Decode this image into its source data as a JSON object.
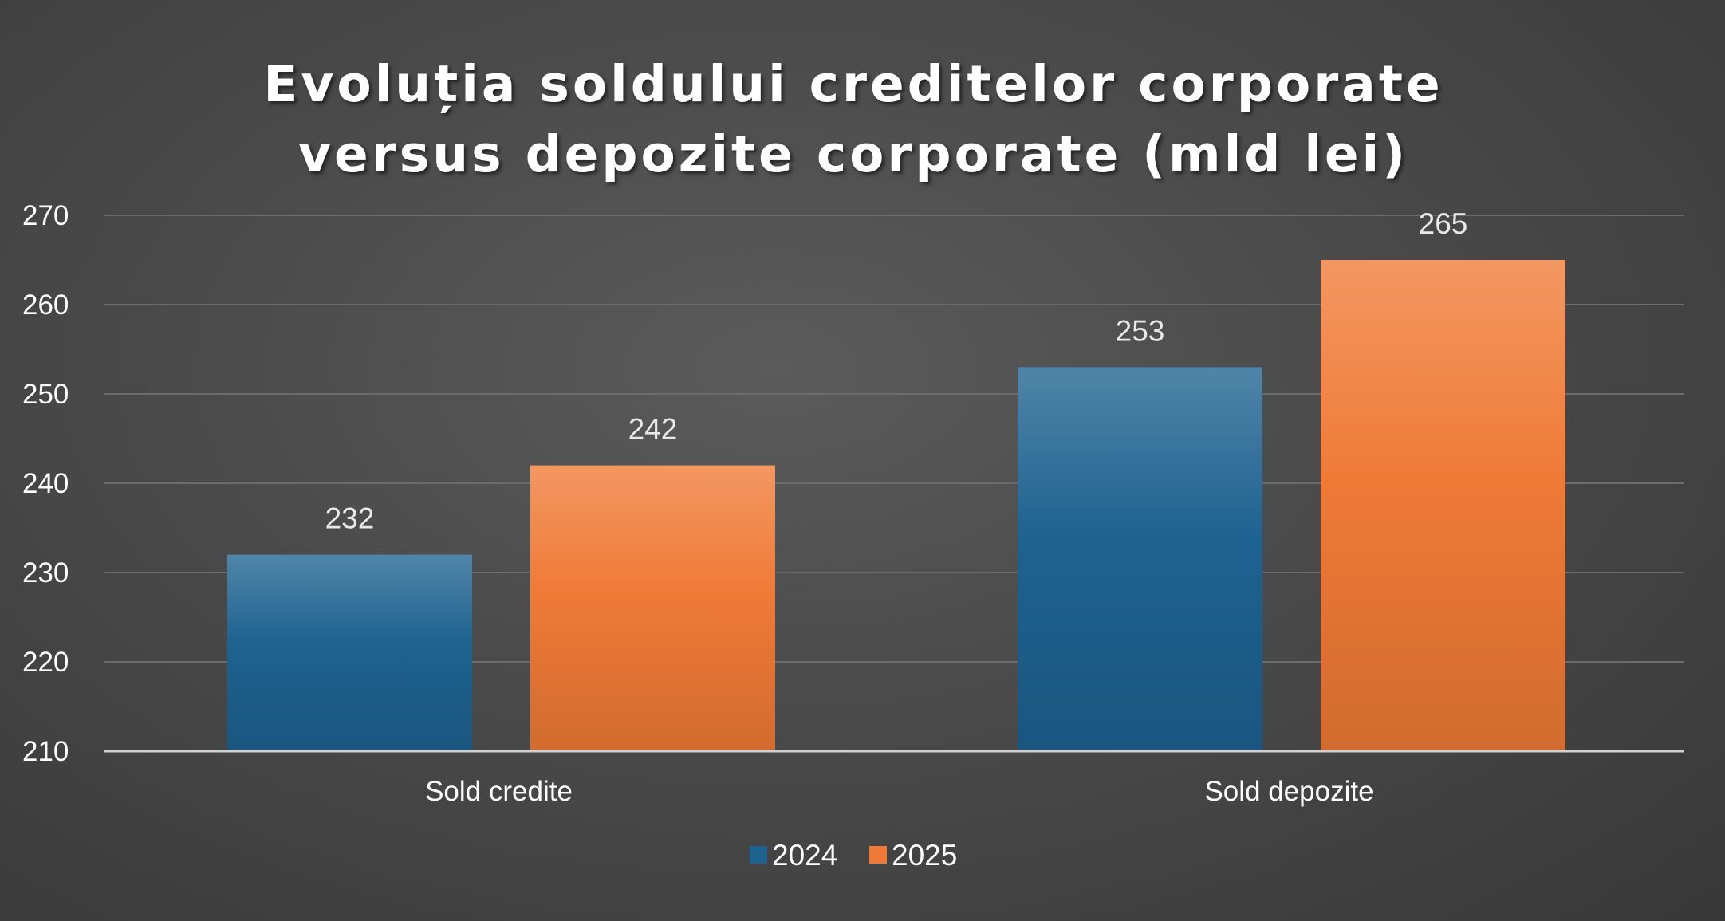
{
  "chart_data": {
    "type": "bar",
    "title": "Evoluția soldului creditelor corporate versus depozite corporate (mld lei)",
    "categories": [
      "Sold credite",
      "Sold depozite"
    ],
    "series": [
      {
        "name": "2024",
        "values": [
          232,
          253
        ],
        "color": "#1e6290"
      },
      {
        "name": "2025",
        "values": [
          242,
          265
        ],
        "color": "#ef7a36"
      }
    ],
    "ylim": [
      210,
      270
    ],
    "yticks": [
      210,
      220,
      230,
      240,
      250,
      260,
      270
    ],
    "grid": true,
    "legend": "bottom",
    "data_labels": true
  }
}
